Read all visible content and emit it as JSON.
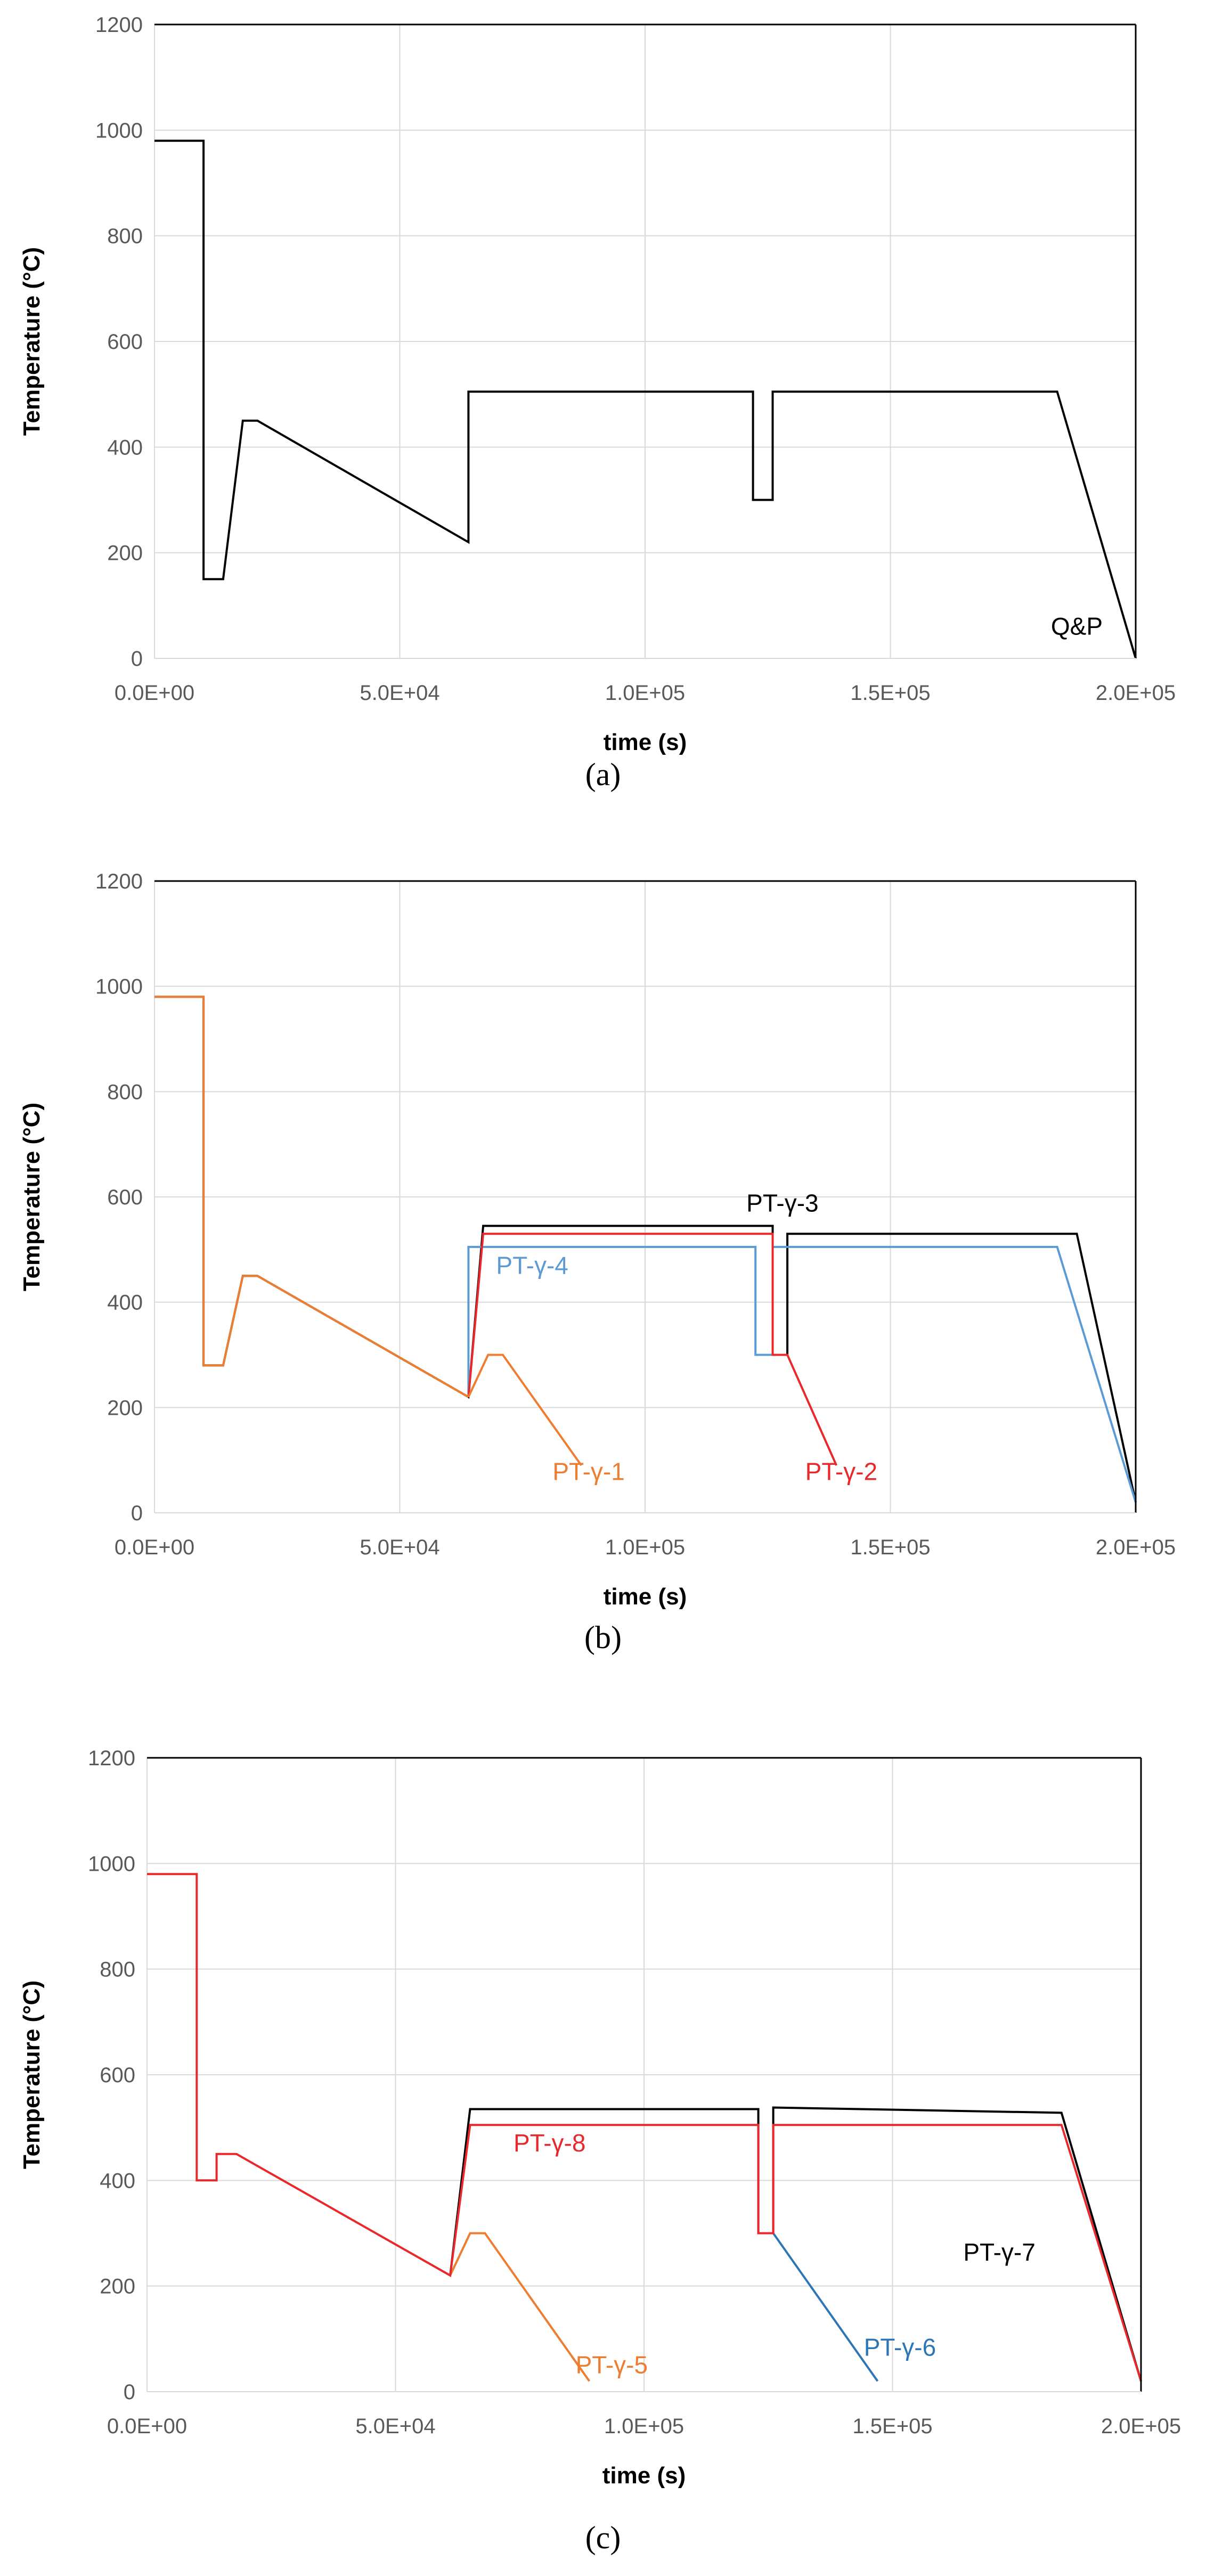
{
  "colors": {
    "black": "#000000",
    "orange": "#ED7D31",
    "red": "#E8282B",
    "blue": "#5B9BD5",
    "blue_dark": "#2E75B6",
    "grid": "#D9D9D9",
    "tick": "#595959"
  },
  "chart_data": [
    {
      "type": "line",
      "panel": "a",
      "caption": "(a)",
      "xlabel": "time (s)",
      "ylabel": "Temperature (°C)",
      "xlim": [
        0,
        200000
      ],
      "ylim": [
        0,
        1200
      ],
      "xticks": [
        "0.0E+00",
        "5.0E+04",
        "1.0E+05",
        "1.5E+05",
        "2.0E+05"
      ],
      "yticks": [
        "0",
        "200",
        "400",
        "600",
        "800",
        "1000",
        "1200"
      ],
      "annotations": [
        {
          "text": "Q&P",
          "x": 188000,
          "y": 45,
          "color": "#000000"
        }
      ],
      "series": [
        {
          "color": "#000000",
          "x": [
            0,
            10000,
            10000,
            14000,
            18000,
            21000,
            64000,
            64000,
            122000,
            122000,
            126000,
            126000,
            184000,
            200000
          ],
          "y": [
            980,
            980,
            150,
            150,
            450,
            450,
            220,
            505,
            505,
            300,
            300,
            505,
            505,
            0
          ]
        }
      ]
    },
    {
      "type": "line",
      "panel": "b",
      "caption": "(b)",
      "xlabel": "time (s)",
      "ylabel": "Temperature (°C)",
      "xlim": [
        0,
        200000
      ],
      "ylim": [
        0,
        1200
      ],
      "xticks": [
        "0.0E+00",
        "5.0E+04",
        "1.0E+05",
        "1.5E+05",
        "2.0E+05"
      ],
      "yticks": [
        "0",
        "200",
        "400",
        "600",
        "800",
        "1000",
        "1200"
      ],
      "annotations": [
        {
          "text": "PT-γ-3",
          "x": 128000,
          "y": 572,
          "color": "#000000"
        },
        {
          "text": "PT-γ-4",
          "x": 77000,
          "y": 454,
          "color": "#5B9BD5"
        },
        {
          "text": "PT-γ-1",
          "x": 88500,
          "y": 62,
          "color": "#ED7D31"
        },
        {
          "text": "PT-γ-2",
          "x": 140000,
          "y": 62,
          "color": "#E8282B"
        }
      ],
      "series": [
        {
          "name": "PT-γ-3",
          "color": "#000000",
          "x": [
            0,
            10000,
            10000,
            14000,
            18000,
            21000,
            64000,
            67000,
            126000,
            126000,
            129000,
            129000,
            188000,
            200000
          ],
          "y": [
            980,
            980,
            280,
            280,
            450,
            450,
            220,
            545,
            545,
            300,
            300,
            530,
            530,
            20
          ]
        },
        {
          "name": "PT-γ-4",
          "color": "#5B9BD5",
          "x": [
            64000,
            64000,
            122500,
            122500,
            126000,
            126000,
            184000,
            200000
          ],
          "y": [
            220,
            505,
            505,
            300,
            300,
            505,
            505,
            20
          ]
        },
        {
          "name": "PT-γ-2",
          "color": "#E8282B",
          "x": [
            64000,
            67000,
            126000,
            126000,
            129000,
            139000
          ],
          "y": [
            220,
            530,
            530,
            300,
            300,
            90
          ]
        },
        {
          "name": "PT-γ-1",
          "color": "#ED7D31",
          "x": [
            64000,
            68000,
            71000,
            87000
          ],
          "y": [
            220,
            300,
            300,
            90
          ]
        },
        {
          "name": "",
          "color": "#ED7D31",
          "x": [
            0,
            10000,
            10000,
            14000,
            18000,
            21000,
            64000
          ],
          "y": [
            980,
            980,
            280,
            280,
            450,
            450,
            220
          ]
        }
      ]
    },
    {
      "type": "line",
      "panel": "c",
      "caption": "(c)",
      "xlabel": "time (s)",
      "ylabel": "Temperature (°C)",
      "xlim": [
        0,
        200000
      ],
      "ylim": [
        0,
        1200
      ],
      "xticks": [
        "0.0E+00",
        "5.0E+04",
        "1.0E+05",
        "1.5E+05",
        "2.0E+05"
      ],
      "yticks": [
        "0",
        "200",
        "400",
        "600",
        "800",
        "1000",
        "1200"
      ],
      "annotations": [
        {
          "text": "PT-γ-8",
          "x": 81000,
          "y": 455,
          "color": "#E8282B"
        },
        {
          "text": "PT-γ-7",
          "x": 171500,
          "y": 248,
          "color": "#000000"
        },
        {
          "text": "PT-γ-5",
          "x": 93500,
          "y": 35,
          "color": "#ED7D31"
        },
        {
          "text": "PT-γ-6",
          "x": 151500,
          "y": 68,
          "color": "#2E75B6"
        }
      ],
      "series": [
        {
          "name": "PT-γ-7",
          "color": "#000000",
          "x": [
            61000,
            65000,
            123000,
            123000,
            126000,
            126000,
            184000,
            200000
          ],
          "y": [
            220,
            535,
            535,
            300,
            300,
            538,
            528,
            20
          ]
        },
        {
          "name": "PT-γ-5",
          "color": "#ED7D31",
          "x": [
            61000,
            65000,
            68000,
            89000
          ],
          "y": [
            220,
            300,
            300,
            20
          ]
        },
        {
          "name": "PT-γ-6",
          "color": "#2E75B6",
          "x": [
            123000,
            126000,
            147000
          ],
          "y": [
            300,
            300,
            20
          ]
        },
        {
          "name": "PT-γ-8",
          "color": "#E8282B",
          "x": [
            0,
            10000,
            10000,
            14000,
            14000,
            18000,
            61000,
            65000,
            123000,
            123000,
            126000,
            126000,
            184000,
            200000
          ],
          "y": [
            980,
            980,
            400,
            400,
            450,
            450,
            220,
            505,
            505,
            300,
            300,
            505,
            505,
            20
          ]
        }
      ]
    }
  ]
}
